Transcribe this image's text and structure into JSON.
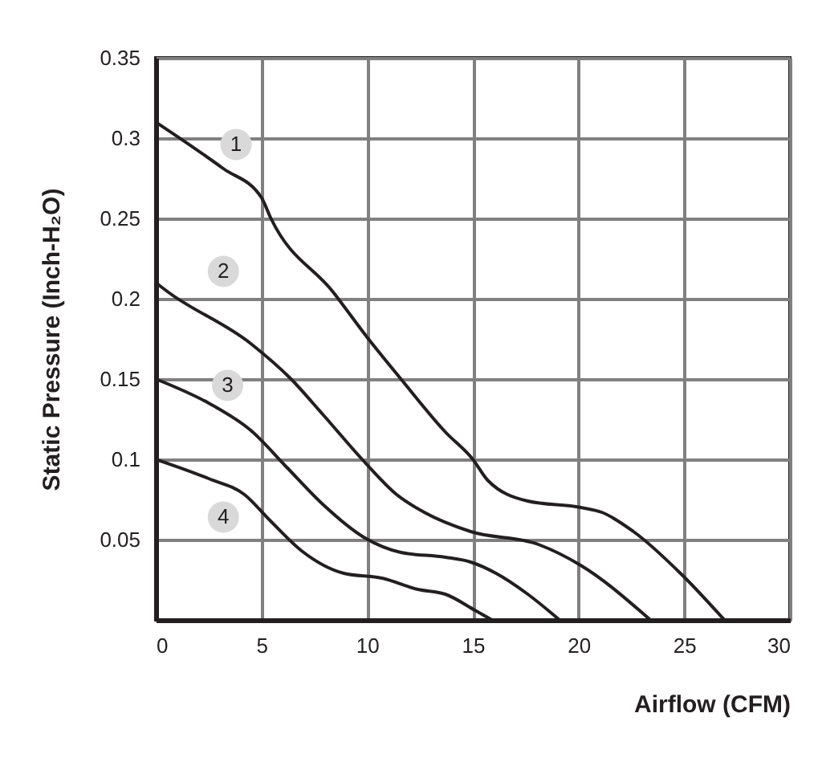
{
  "chart_data": {
    "type": "line",
    "xlabel": "Airflow (CFM)",
    "ylabel": "Static Pressure (Inch-H₂O)",
    "xlim": [
      0,
      30
    ],
    "xticks": [
      0,
      5,
      10,
      15,
      20,
      25,
      30
    ],
    "ylim": [
      0,
      0.35
    ],
    "yticks": [
      {
        "value": 0,
        "label": null
      },
      0.05,
      0.1,
      0.15,
      0.2,
      0.25,
      0.3,
      0.35
    ],
    "grid": true,
    "marker": "none",
    "line_style": "solid",
    "annotations": [
      {
        "text": "1",
        "x": 3.8,
        "y": 0.296
      },
      {
        "text": "2",
        "x": 3.2,
        "y": 0.217
      },
      {
        "text": "3",
        "x": 3.4,
        "y": 0.146
      },
      {
        "text": "4",
        "x": 3.2,
        "y": 0.064
      }
    ],
    "series": [
      {
        "color": "#231f20",
        "x": [
          0,
          3.2,
          5,
          5.45,
          8.4,
          10,
          11.6,
          13.7,
          15,
          15.7,
          17.6,
          20.1,
          21.1,
          22.6,
          24.9,
          26.9
        ],
        "values": [
          0.31,
          0.281,
          0.263,
          0.25,
          0.204,
          0.176,
          0.15,
          0.117,
          0.1,
          0.087,
          0.074,
          0.07,
          0.067,
          0.055,
          0.028,
          0
        ]
      },
      {
        "color": "#231f20",
        "x": [
          0,
          0.6,
          4.5,
          6.4,
          7.9,
          9.9,
          11.4,
          12.7,
          14.9,
          18.1,
          20.1,
          23.4
        ],
        "values": [
          0.21,
          0.204,
          0.172,
          0.15,
          0.128,
          0.098,
          0.078,
          0.067,
          0.055,
          0.047,
          0.034,
          0
        ]
      },
      {
        "color": "#231f20",
        "x": [
          0,
          2.5,
          4.5,
          6.2,
          7.9,
          9.9,
          11.6,
          13.7,
          14.9,
          16.1,
          17.6,
          19.1
        ],
        "values": [
          0.15,
          0.135,
          0.118,
          0.095,
          0.072,
          0.051,
          0.042,
          0.039,
          0.036,
          0.029,
          0.016,
          0
        ]
      },
      {
        "color": "#231f20",
        "x": [
          0,
          2.5,
          4.2,
          5.4,
          6.9,
          8.9,
          10.7,
          12.4,
          13.7,
          15.1,
          15.9
        ],
        "values": [
          0.1,
          0.088,
          0.078,
          0.062,
          0.043,
          0.029,
          0.026,
          0.019,
          0.016,
          0.006,
          0
        ]
      }
    ]
  }
}
